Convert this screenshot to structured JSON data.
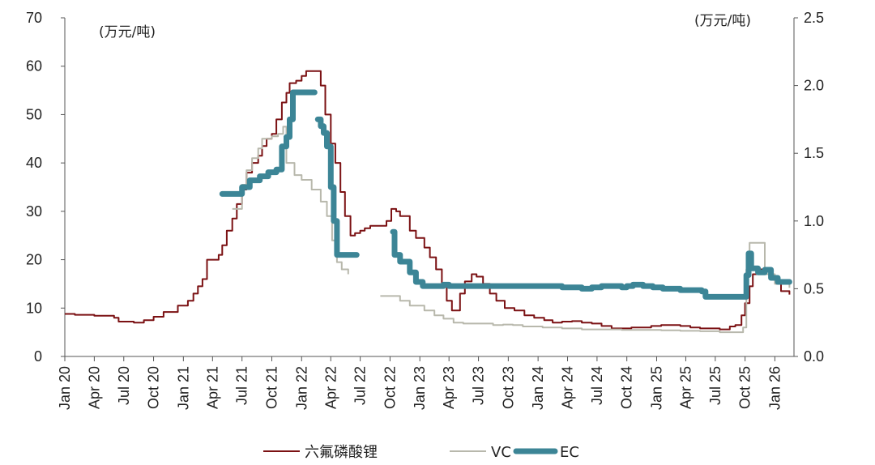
{
  "chart_data": {
    "type": "line",
    "left_unit": "(万元/吨)",
    "right_unit": "(万元/吨)",
    "y_left": {
      "min": 0,
      "max": 70,
      "ticks": [
        "0",
        "10",
        "20",
        "30",
        "40",
        "50",
        "60",
        "70"
      ]
    },
    "y_right": {
      "min": 0,
      "max": 2.5,
      "ticks": [
        "0.0",
        "0.5",
        "1.0",
        "1.5",
        "2.0",
        "2.5"
      ]
    },
    "x_ticks": [
      "Jan 20",
      "Apr 20",
      "Jul 20",
      "Oct 20",
      "Jan 21",
      "Apr 21",
      "Jul 21",
      "Oct 21",
      "Jan 22",
      "Apr 22",
      "Jul 22",
      "Oct 22",
      "Jan 23",
      "Apr 23",
      "Jul 23",
      "Oct 23",
      "Jan 24",
      "Apr 24",
      "Jul 24",
      "Oct 24",
      "Jan 25",
      "Apr 25",
      "Jul 25",
      "Oct 25",
      "Jan 26"
    ],
    "legend_position": "bottom",
    "series": [
      {
        "name": "六氟磷酸锂",
        "axis": "left",
        "color": "#7b1113",
        "points": [
          [
            "2020-01-01",
            8.8
          ],
          [
            "2020-02-01",
            8.6
          ],
          [
            "2020-04-01",
            8.4
          ],
          [
            "2020-06-01",
            8.0
          ],
          [
            "2020-06-15",
            7.2
          ],
          [
            "2020-08-01",
            7.0
          ],
          [
            "2020-09-01",
            7.5
          ],
          [
            "2020-10-01",
            8.2
          ],
          [
            "2020-11-01",
            9.2
          ],
          [
            "2020-12-15",
            10.5
          ],
          [
            "2021-01-15",
            11.5
          ],
          [
            "2021-02-01",
            13.0
          ],
          [
            "2021-02-15",
            14.5
          ],
          [
            "2021-03-01",
            16.0
          ],
          [
            "2021-03-15",
            20.0
          ],
          [
            "2021-04-20",
            21.0
          ],
          [
            "2021-05-01",
            23.0
          ],
          [
            "2021-05-15",
            26.0
          ],
          [
            "2021-06-01",
            28.5
          ],
          [
            "2021-06-15",
            31.5
          ],
          [
            "2021-07-01",
            34.5
          ],
          [
            "2021-07-15",
            38.0
          ],
          [
            "2021-08-01",
            40.0
          ],
          [
            "2021-08-20",
            41.5
          ],
          [
            "2021-09-01",
            43.5
          ],
          [
            "2021-09-15",
            45.0
          ],
          [
            "2021-10-01",
            46.0
          ],
          [
            "2021-10-15",
            49.0
          ],
          [
            "2021-11-01",
            52.5
          ],
          [
            "2021-11-15",
            54.5
          ],
          [
            "2021-11-25",
            56.5
          ],
          [
            "2021-12-15",
            57.0
          ],
          [
            "2022-01-01",
            58.0
          ],
          [
            "2022-01-15",
            59.0
          ],
          [
            "2022-02-15",
            59.0
          ],
          [
            "2022-03-01",
            56.0
          ],
          [
            "2022-03-15",
            50.0
          ],
          [
            "2022-04-01",
            44.0
          ],
          [
            "2022-04-15",
            40.0
          ],
          [
            "2022-05-01",
            34.0
          ],
          [
            "2022-05-15",
            29.0
          ],
          [
            "2022-06-01",
            25.0
          ],
          [
            "2022-06-15",
            25.5
          ],
          [
            "2022-07-01",
            26.0
          ],
          [
            "2022-07-15",
            26.5
          ],
          [
            "2022-08-01",
            27.0
          ],
          [
            "2022-09-01",
            27.0
          ],
          [
            "2022-09-20",
            28.0
          ],
          [
            "2022-10-05",
            30.5
          ],
          [
            "2022-10-20",
            30.0
          ],
          [
            "2022-11-01",
            29.0
          ],
          [
            "2022-12-01",
            26.0
          ],
          [
            "2022-12-20",
            24.5
          ],
          [
            "2023-01-15",
            22.5
          ],
          [
            "2023-02-01",
            20.5
          ],
          [
            "2023-02-20",
            18.0
          ],
          [
            "2023-03-10",
            14.5
          ],
          [
            "2023-03-25",
            11.5
          ],
          [
            "2023-04-10",
            9.5
          ],
          [
            "2023-04-25",
            9.5
          ],
          [
            "2023-05-05",
            13.0
          ],
          [
            "2023-05-20",
            15.5
          ],
          [
            "2023-06-10",
            17.0
          ],
          [
            "2023-06-25",
            16.5
          ],
          [
            "2023-07-15",
            15.0
          ],
          [
            "2023-08-05",
            13.0
          ],
          [
            "2023-08-25",
            11.5
          ],
          [
            "2023-09-20",
            10.0
          ],
          [
            "2023-10-20",
            9.5
          ],
          [
            "2023-11-20",
            8.5
          ],
          [
            "2023-12-20",
            8.0
          ],
          [
            "2024-01-20",
            7.5
          ],
          [
            "2024-02-15",
            7.0
          ],
          [
            "2024-03-15",
            7.2
          ],
          [
            "2024-04-15",
            7.3
          ],
          [
            "2024-05-15",
            7.0
          ],
          [
            "2024-06-15",
            6.8
          ],
          [
            "2024-07-15",
            6.3
          ],
          [
            "2024-08-15",
            5.8
          ],
          [
            "2024-09-15",
            5.8
          ],
          [
            "2024-10-15",
            6.0
          ],
          [
            "2024-11-15",
            6.0
          ],
          [
            "2024-12-15",
            6.3
          ],
          [
            "2025-01-15",
            6.5
          ],
          [
            "2025-02-15",
            6.5
          ],
          [
            "2025-03-15",
            6.3
          ],
          [
            "2025-04-15",
            6.0
          ],
          [
            "2025-05-15",
            5.8
          ],
          [
            "2025-06-15",
            5.8
          ],
          [
            "2025-07-15",
            5.6
          ],
          [
            "2025-08-15",
            6.2
          ],
          [
            "2025-09-01",
            6.5
          ],
          [
            "2025-09-20",
            8.5
          ],
          [
            "2025-10-01",
            11.0
          ],
          [
            "2025-10-15",
            14.5
          ],
          [
            "2025-10-25",
            17.0
          ],
          [
            "2025-11-05",
            18.0
          ],
          [
            "2025-12-01",
            18.0
          ],
          [
            "2025-12-20",
            16.5
          ],
          [
            "2026-01-05",
            15.0
          ],
          [
            "2026-01-20",
            13.5
          ],
          [
            "2026-02-15",
            12.8
          ]
        ]
      },
      {
        "name": "VC",
        "axis": "left",
        "color": "#b8b8ac",
        "points": [
          [
            "2021-06-01",
            30.5
          ],
          [
            "2021-06-15",
            30.5
          ],
          [
            "2021-07-01",
            35.5
          ],
          [
            "2021-07-15",
            38.5
          ],
          [
            "2021-08-01",
            41.0
          ],
          [
            "2021-08-20",
            43.0
          ],
          [
            "2021-09-01",
            45.0
          ],
          [
            "2021-10-01",
            45.5
          ],
          [
            "2021-10-20",
            46.0
          ],
          [
            "2021-11-05",
            47.5
          ],
          [
            "2021-11-15",
            40.0
          ],
          [
            "2021-12-10",
            37.5
          ],
          [
            "2022-01-01",
            36.5
          ],
          [
            "2022-02-01",
            34.5
          ],
          [
            "2022-03-01",
            32.0
          ],
          [
            "2022-03-20",
            29.0
          ],
          [
            "2022-04-05",
            24.0
          ],
          [
            "2022-04-20",
            19.5
          ],
          [
            "2022-05-05",
            18.0
          ],
          [
            "2022-05-25",
            17.0
          ],
          null,
          [
            "2022-09-01",
            12.5
          ],
          [
            "2022-10-01",
            12.5
          ],
          [
            "2022-11-01",
            11.5
          ],
          [
            "2022-12-01",
            10.5
          ],
          [
            "2023-01-15",
            9.5
          ],
          [
            "2023-02-15",
            8.5
          ],
          [
            "2023-03-15",
            7.8
          ],
          [
            "2023-04-15",
            7.0
          ],
          [
            "2023-05-15",
            6.8
          ],
          [
            "2023-06-15",
            6.8
          ],
          [
            "2023-07-15",
            6.8
          ],
          [
            "2023-08-15",
            6.5
          ],
          [
            "2023-09-15",
            6.6
          ],
          [
            "2023-10-15",
            6.5
          ],
          [
            "2023-11-15",
            6.2
          ],
          [
            "2024-01-15",
            6.0
          ],
          [
            "2024-03-15",
            5.8
          ],
          [
            "2024-05-15",
            5.6
          ],
          [
            "2024-07-15",
            5.6
          ],
          [
            "2024-09-15",
            5.5
          ],
          [
            "2024-11-15",
            5.5
          ],
          [
            "2025-01-15",
            5.4
          ],
          [
            "2025-03-15",
            5.3
          ],
          [
            "2025-05-15",
            5.2
          ],
          [
            "2025-07-15",
            5.0
          ],
          [
            "2025-09-01",
            5.0
          ],
          [
            "2025-09-25",
            6.0
          ],
          [
            "2025-10-05",
            18.0
          ],
          [
            "2025-10-15",
            23.5
          ],
          [
            "2025-11-25",
            23.5
          ],
          [
            "2025-12-01",
            17.0
          ],
          [
            "2026-01-01",
            15.0
          ],
          [
            "2026-02-15",
            14.2
          ]
        ]
      },
      {
        "name": "EC",
        "axis": "right",
        "color": "#3c8596",
        "points": [
          [
            "2021-05-01",
            1.2
          ],
          [
            "2021-06-25",
            1.2
          ],
          [
            "2021-07-01",
            1.25
          ],
          [
            "2021-07-25",
            1.3
          ],
          [
            "2021-08-25",
            1.33
          ],
          [
            "2021-09-20",
            1.36
          ],
          [
            "2021-10-15",
            1.38
          ],
          [
            "2021-11-01",
            1.55
          ],
          [
            "2021-11-15",
            1.62
          ],
          [
            "2021-11-25",
            1.75
          ],
          [
            "2021-12-05",
            1.95
          ],
          [
            "2022-02-10",
            1.95
          ],
          null,
          [
            "2022-02-20",
            1.75
          ],
          [
            "2022-03-01",
            1.7
          ],
          [
            "2022-03-10",
            1.65
          ],
          [
            "2022-03-20",
            1.55
          ],
          [
            "2022-04-01",
            1.25
          ],
          [
            "2022-04-10",
            1.0
          ],
          [
            "2022-04-20",
            0.75
          ],
          [
            "2022-06-20",
            0.75
          ],
          null,
          [
            "2022-10-10",
            0.92
          ],
          [
            "2022-10-15",
            0.75
          ],
          [
            "2022-11-01",
            0.7
          ],
          [
            "2022-12-01",
            0.62
          ],
          [
            "2022-12-20",
            0.55
          ],
          [
            "2023-01-10",
            0.52
          ],
          [
            "2023-03-01",
            0.52
          ],
          [
            "2023-03-15",
            0.53
          ],
          [
            "2023-04-01",
            0.52
          ],
          [
            "2023-07-01",
            0.52
          ],
          [
            "2023-10-01",
            0.52
          ],
          [
            "2024-01-01",
            0.52
          ],
          [
            "2024-03-15",
            0.51
          ],
          [
            "2024-05-15",
            0.5
          ],
          [
            "2024-06-15",
            0.51
          ],
          [
            "2024-07-15",
            0.52
          ],
          [
            "2024-08-15",
            0.52
          ],
          [
            "2024-09-15",
            0.51
          ],
          [
            "2024-10-01",
            0.52
          ],
          [
            "2024-10-20",
            0.53
          ],
          [
            "2024-11-20",
            0.52
          ],
          [
            "2024-12-20",
            0.51
          ],
          [
            "2025-01-20",
            0.5
          ],
          [
            "2025-03-15",
            0.49
          ],
          [
            "2025-04-15",
            0.49
          ],
          [
            "2025-05-20",
            0.48
          ],
          [
            "2025-06-01",
            0.44
          ],
          [
            "2025-06-20",
            0.44
          ],
          [
            "2025-07-20",
            0.44
          ],
          [
            "2025-09-10",
            0.44
          ],
          [
            "2025-09-25",
            0.44
          ],
          [
            "2025-10-05",
            0.6
          ],
          [
            "2025-10-12",
            0.76
          ],
          [
            "2025-10-20",
            0.65
          ],
          [
            "2025-11-10",
            0.62
          ],
          [
            "2025-12-01",
            0.64
          ],
          [
            "2025-12-20",
            0.58
          ],
          [
            "2026-01-10",
            0.55
          ],
          [
            "2026-02-15",
            0.55
          ]
        ]
      }
    ]
  }
}
